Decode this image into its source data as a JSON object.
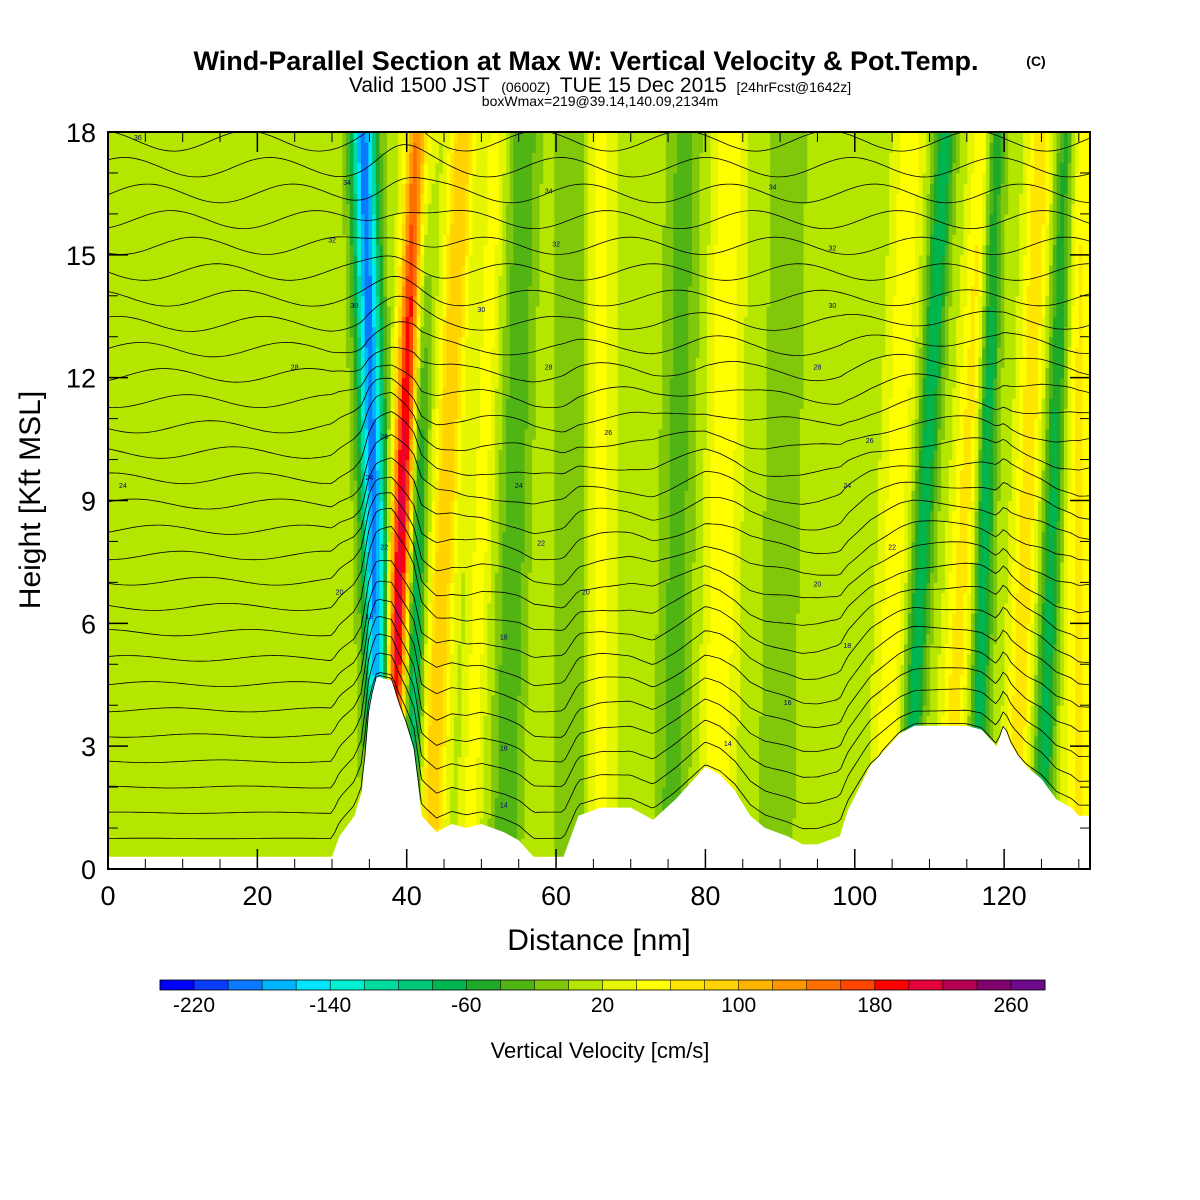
{
  "title": {
    "main": "Wind-Parallel Section at Max W: Vertical Velocity & Pot.Temp.",
    "copyright": "(C)",
    "valid_prefix": "Valid 1500 JST",
    "valid_utc": "(0600Z)",
    "valid_date": "TUE 15 Dec 2015",
    "forecast": "[24hrFcst@1642z]",
    "box_info": "boxWmax=219@39.14,140.09,2134m"
  },
  "chart_data": {
    "type": "heatmap",
    "xlabel": "Distance [nm]",
    "ylabel": "Height [Kft MSL]",
    "xlim": [
      0,
      131.5
    ],
    "ylim": [
      0,
      18
    ],
    "x_ticks": [
      0,
      20,
      40,
      60,
      80,
      100,
      120
    ],
    "y_ticks": [
      0,
      3,
      6,
      9,
      12,
      15,
      18
    ],
    "background_velocity_cms": 10,
    "velocity_bands": [
      {
        "x": 36.0,
        "x_slope_per_kft": -0.15,
        "width": 1.2,
        "w": -200
      },
      {
        "x": 38.8,
        "x_slope_per_kft": 0.25,
        "width": 1.1,
        "w": 219
      },
      {
        "x": 41.0,
        "x_slope_per_kft": 0.1,
        "width": 0.9,
        "w": -110
      },
      {
        "x": 44.5,
        "x_slope_per_kft": 0.25,
        "width": 1.2,
        "w": 90
      },
      {
        "x": 49.5,
        "x_slope_per_kft": 0.2,
        "width": 1.0,
        "w": 40
      },
      {
        "x": 54.0,
        "x_slope_per_kft": 0.15,
        "width": 1.3,
        "w": -50
      },
      {
        "x": 62.0,
        "x_slope_per_kft": 0.0,
        "width": 1.5,
        "w": -30
      },
      {
        "x": 66.0,
        "x_slope_per_kft": 0.0,
        "width": 1.2,
        "w": 40
      },
      {
        "x": 76.0,
        "x_slope_per_kft": 0.1,
        "width": 1.5,
        "w": -40
      },
      {
        "x": 82.0,
        "x_slope_per_kft": 0.1,
        "width": 1.5,
        "w": 50
      },
      {
        "x": 90.0,
        "x_slope_per_kft": 0.1,
        "width": 1.6,
        "w": -30
      },
      {
        "x": 105.0,
        "x_slope_per_kft": 0.2,
        "width": 1.4,
        "w": 45
      },
      {
        "x": 108.5,
        "x_slope_per_kft": 0.3,
        "width": 1.0,
        "w": -85
      },
      {
        "x": 114.0,
        "x_slope_per_kft": 0.3,
        "width": 1.3,
        "w": 60
      },
      {
        "x": 117.0,
        "x_slope_per_kft": 0.15,
        "width": 0.9,
        "w": -90
      },
      {
        "x": 122.5,
        "x_slope_per_kft": 0.2,
        "width": 1.2,
        "w": 65
      },
      {
        "x": 126.0,
        "x_slope_per_kft": 0.2,
        "width": 1.0,
        "w": -80
      },
      {
        "x": 130.0,
        "x_slope_per_kft": 0.0,
        "width": 1.5,
        "w": 55
      }
    ],
    "terrain_kft": [
      [
        0,
        0.3
      ],
      [
        30,
        0.3
      ],
      [
        31,
        0.8
      ],
      [
        33,
        1.3
      ],
      [
        34,
        1.9
      ],
      [
        35,
        4.0
      ],
      [
        36,
        4.7
      ],
      [
        38,
        4.6
      ],
      [
        39,
        4.0
      ],
      [
        40,
        3.5
      ],
      [
        41,
        2.9
      ],
      [
        42,
        1.3
      ],
      [
        44,
        0.9
      ],
      [
        46,
        1.1
      ],
      [
        48,
        1.0
      ],
      [
        50,
        1.1
      ],
      [
        53,
        0.9
      ],
      [
        55,
        0.7
      ],
      [
        57,
        0.3
      ],
      [
        61,
        0.3
      ],
      [
        63,
        1.3
      ],
      [
        66,
        1.5
      ],
      [
        70,
        1.5
      ],
      [
        73,
        1.2
      ],
      [
        76,
        1.7
      ],
      [
        78,
        2.1
      ],
      [
        80,
        2.5
      ],
      [
        82,
        2.3
      ],
      [
        84,
        1.9
      ],
      [
        86,
        1.3
      ],
      [
        88,
        1.0
      ],
      [
        91,
        0.8
      ],
      [
        93,
        0.6
      ],
      [
        95,
        0.6
      ],
      [
        98,
        0.8
      ],
      [
        99,
        1.4
      ],
      [
        102,
        2.5
      ],
      [
        104,
        2.9
      ],
      [
        106,
        3.3
      ],
      [
        108,
        3.5
      ],
      [
        115,
        3.5
      ],
      [
        117,
        3.4
      ],
      [
        119,
        3.0
      ],
      [
        120,
        3.5
      ],
      [
        121,
        3.0
      ],
      [
        123,
        2.5
      ],
      [
        125,
        2.2
      ],
      [
        127,
        1.7
      ],
      [
        129,
        1.5
      ],
      [
        130,
        1.3
      ],
      [
        131.5,
        1.3
      ]
    ],
    "theta_labels": [
      {
        "x": 4,
        "y": 17.8,
        "text": "36"
      },
      {
        "x": 32,
        "y": 16.7,
        "text": "34"
      },
      {
        "x": 59,
        "y": 16.5,
        "text": "34"
      },
      {
        "x": 89,
        "y": 16.6,
        "text": "34"
      },
      {
        "x": 30,
        "y": 15.3,
        "text": "32"
      },
      {
        "x": 60,
        "y": 15.2,
        "text": "32"
      },
      {
        "x": 97,
        "y": 15.1,
        "text": "32"
      },
      {
        "x": 33,
        "y": 13.7,
        "text": "30"
      },
      {
        "x": 50,
        "y": 13.6,
        "text": "30"
      },
      {
        "x": 97,
        "y": 13.7,
        "text": "30"
      },
      {
        "x": 25,
        "y": 12.2,
        "text": "28"
      },
      {
        "x": 59,
        "y": 12.2,
        "text": "28"
      },
      {
        "x": 95,
        "y": 12.2,
        "text": "28"
      },
      {
        "x": 37,
        "y": 10.5,
        "text": "26"
      },
      {
        "x": 67,
        "y": 10.6,
        "text": "26"
      },
      {
        "x": 102,
        "y": 10.4,
        "text": "26"
      },
      {
        "x": 2,
        "y": 9.3,
        "text": "24"
      },
      {
        "x": 35,
        "y": 9.5,
        "text": "24"
      },
      {
        "x": 55,
        "y": 9.3,
        "text": "24"
      },
      {
        "x": 99,
        "y": 9.3,
        "text": "24"
      },
      {
        "x": 37,
        "y": 7.8,
        "text": "22"
      },
      {
        "x": 58,
        "y": 7.9,
        "text": "22"
      },
      {
        "x": 105,
        "y": 7.8,
        "text": "22"
      },
      {
        "x": 31,
        "y": 6.7,
        "text": "20"
      },
      {
        "x": 64,
        "y": 6.7,
        "text": "20"
      },
      {
        "x": 95,
        "y": 6.9,
        "text": "20"
      },
      {
        "x": 35,
        "y": 6.1,
        "text": "18"
      },
      {
        "x": 53,
        "y": 5.6,
        "text": "18"
      },
      {
        "x": 99,
        "y": 5.4,
        "text": "18"
      },
      {
        "x": 91,
        "y": 4.0,
        "text": "16"
      },
      {
        "x": 53,
        "y": 2.9,
        "text": "16"
      },
      {
        "x": 83,
        "y": 3.0,
        "text": "14"
      },
      {
        "x": 53,
        "y": 1.5,
        "text": "14"
      }
    ],
    "colorbar": {
      "label": "Vertical Velocity [cm/s]",
      "min": -240,
      "max": 280,
      "step": 20,
      "tick_values": [
        -220,
        -140,
        -60,
        20,
        100,
        180,
        260
      ],
      "tick_labels": [
        "-220",
        "-140",
        "-60",
        "20",
        "100",
        "180",
        "260"
      ],
      "colors": [
        "#0000ff",
        "#0a3cff",
        "#0a78ff",
        "#00b4ff",
        "#00e6ff",
        "#00f0d2",
        "#00dca0",
        "#00c878",
        "#00b450",
        "#1eaa28",
        "#50b414",
        "#82c80a",
        "#b4e600",
        "#e6f500",
        "#ffff00",
        "#ffe600",
        "#ffd200",
        "#ffb400",
        "#ff9600",
        "#ff6e00",
        "#ff4600",
        "#ff0000",
        "#e6003c",
        "#b40050",
        "#82006e",
        "#6e0a8c"
      ]
    }
  }
}
